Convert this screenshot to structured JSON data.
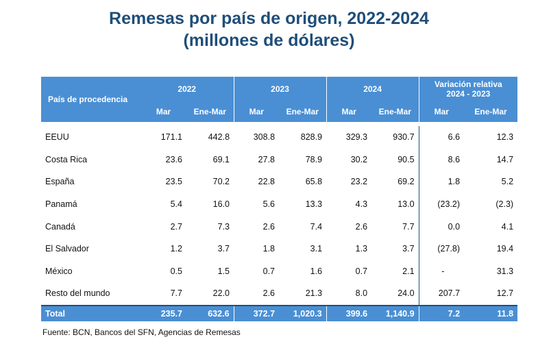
{
  "title_line1": "Remesas por país de origen, 2022-2024",
  "title_line2": "(millones de dólares)",
  "headers": {
    "country": "País de procedencia",
    "year_2022": "2022",
    "year_2023": "2023",
    "year_2024": "2024",
    "variation_line1": "Variación relativa",
    "variation_line2": "2024 - 2023",
    "mar": "Mar",
    "ene_mar": "Ene-Mar"
  },
  "rows": [
    {
      "country": "EEUU",
      "v": [
        "171.1",
        "442.8",
        "308.8",
        "828.9",
        "329.3",
        "930.7",
        "6.6",
        "12.3"
      ]
    },
    {
      "country": "Costa Rica",
      "v": [
        "23.6",
        "69.1",
        "27.8",
        "78.9",
        "30.2",
        "90.5",
        "8.6",
        "14.7"
      ]
    },
    {
      "country": "España",
      "v": [
        "23.5",
        "70.2",
        "22.8",
        "65.8",
        "23.2",
        "69.2",
        "1.8",
        "5.2"
      ]
    },
    {
      "country": "Panamá",
      "v": [
        "5.4",
        "16.0",
        "5.6",
        "13.3",
        "4.3",
        "13.0",
        "(23.2)",
        "(2.3)"
      ]
    },
    {
      "country": "Canadá",
      "v": [
        "2.7",
        "7.3",
        "2.6",
        "7.4",
        "2.6",
        "7.7",
        "0.0",
        "4.1"
      ]
    },
    {
      "country": "El Salvador",
      "v": [
        "1.2",
        "3.7",
        "1.8",
        "3.1",
        "1.3",
        "3.7",
        "(27.8)",
        "19.4"
      ]
    },
    {
      "country": "México",
      "v": [
        "0.5",
        "1.5",
        "0.7",
        "1.6",
        "0.7",
        "2.1",
        "-",
        "31.3"
      ]
    },
    {
      "country": "Resto del mundo",
      "v": [
        "7.7",
        "22.0",
        "2.6",
        "21.3",
        "8.0",
        "24.0",
        "207.7",
        "12.7"
      ]
    }
  ],
  "total": {
    "country": "Total",
    "v": [
      "235.7",
      "632.6",
      "372.7",
      "1,020.3",
      "399.6",
      "1,140.9",
      "7.2",
      "11.8"
    ]
  },
  "source": "Fuente: BCN, Bancos del SFN, Agencias de Remesas",
  "colors": {
    "title": "#1f4e79",
    "header_bg": "#4a8fd4",
    "header_text": "#ffffff"
  }
}
